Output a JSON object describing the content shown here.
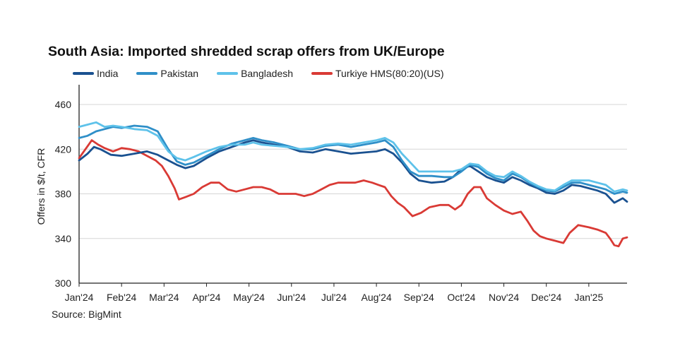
{
  "chart_data": {
    "type": "line",
    "title": "South Asia: Imported shredded scrap offers from UK/Europe",
    "ylabel": "Offers in $/t, CFR",
    "xlabel": "",
    "source": "Source: BigMint",
    "ylim": [
      300,
      460
    ],
    "yticks": [
      300,
      340,
      380,
      420,
      460
    ],
    "xlim": [
      0,
      12.9
    ],
    "xticks": [
      {
        "label": "Jan'24",
        "value": 0
      },
      {
        "label": "Feb'24",
        "value": 1
      },
      {
        "label": "Mar'24",
        "value": 2
      },
      {
        "label": "Apr'24",
        "value": 3
      },
      {
        "label": "May'24",
        "value": 4
      },
      {
        "label": "Jun'24",
        "value": 5
      },
      {
        "label": "Jul'24",
        "value": 6
      },
      {
        "label": "Aug'24",
        "value": 7
      },
      {
        "label": "Sep'24",
        "value": 8
      },
      {
        "label": "Oct'24",
        "value": 9
      },
      {
        "label": "Nov'24",
        "value": 10
      },
      {
        "label": "Dec'24",
        "value": 11
      },
      {
        "label": "Jan'25",
        "value": 12
      }
    ],
    "grid": "horizontal",
    "legend_position": "top-left",
    "series": [
      {
        "name": "India",
        "color": "#1a5190",
        "x": [
          0,
          0.2,
          0.35,
          0.5,
          0.75,
          1.0,
          1.3,
          1.6,
          1.85,
          2.1,
          2.3,
          2.5,
          2.7,
          3.0,
          3.3,
          3.6,
          3.9,
          4.1,
          4.3,
          4.6,
          4.9,
          5.2,
          5.5,
          5.8,
          6.1,
          6.4,
          6.7,
          7.0,
          7.2,
          7.4,
          7.6,
          7.8,
          8.0,
          8.3,
          8.6,
          8.8,
          9.0,
          9.2,
          9.4,
          9.6,
          9.8,
          10.0,
          10.2,
          10.4,
          10.6,
          10.8,
          11.0,
          11.2,
          11.4,
          11.6,
          11.8,
          12.0,
          12.2,
          12.4,
          12.6,
          12.8,
          12.9
        ],
        "values": [
          410,
          416,
          422,
          420,
          415,
          414,
          416,
          418,
          415,
          410,
          406,
          403,
          405,
          412,
          418,
          422,
          426,
          428,
          426,
          424,
          422,
          418,
          417,
          420,
          418,
          416,
          417,
          418,
          420,
          416,
          408,
          398,
          392,
          390,
          391,
          395,
          402,
          405,
          400,
          395,
          392,
          390,
          395,
          392,
          388,
          385,
          381,
          380,
          383,
          388,
          387,
          385,
          383,
          380,
          372,
          376,
          373
        ]
      },
      {
        "name": "Pakistan",
        "color": "#2f8fc8",
        "x": [
          0,
          0.2,
          0.4,
          0.6,
          0.8,
          1.0,
          1.3,
          1.6,
          1.85,
          2.1,
          2.3,
          2.5,
          2.7,
          3.0,
          3.3,
          3.6,
          3.9,
          4.1,
          4.3,
          4.6,
          4.9,
          5.2,
          5.5,
          5.8,
          6.1,
          6.4,
          6.7,
          7.0,
          7.2,
          7.4,
          7.6,
          7.8,
          8.0,
          8.3,
          8.6,
          8.8,
          9.0,
          9.2,
          9.4,
          9.6,
          9.8,
          10.0,
          10.2,
          10.4,
          10.6,
          10.8,
          11.0,
          11.2,
          11.4,
          11.6,
          11.8,
          12.0,
          12.2,
          12.4,
          12.6,
          12.8,
          12.9
        ],
        "values": [
          430,
          432,
          436,
          438,
          440,
          439,
          441,
          440,
          436,
          420,
          409,
          406,
          408,
          414,
          420,
          425,
          428,
          430,
          428,
          426,
          423,
          420,
          420,
          423,
          424,
          422,
          424,
          426,
          428,
          422,
          410,
          400,
          396,
          396,
          395,
          395,
          400,
          406,
          404,
          398,
          394,
          392,
          398,
          395,
          390,
          386,
          383,
          382,
          386,
          390,
          390,
          388,
          386,
          384,
          380,
          382,
          381
        ]
      },
      {
        "name": "Bangladesh",
        "color": "#5ec2ea",
        "x": [
          0,
          0.2,
          0.4,
          0.6,
          0.8,
          1.0,
          1.3,
          1.6,
          1.85,
          2.1,
          2.3,
          2.5,
          2.7,
          3.0,
          3.3,
          3.6,
          3.9,
          4.1,
          4.3,
          4.6,
          4.9,
          5.2,
          5.5,
          5.8,
          6.1,
          6.4,
          6.7,
          7.0,
          7.2,
          7.4,
          7.6,
          7.8,
          8.0,
          8.3,
          8.6,
          8.8,
          9.0,
          9.2,
          9.4,
          9.6,
          9.8,
          10.0,
          10.2,
          10.4,
          10.6,
          10.8,
          11.0,
          11.2,
          11.4,
          11.6,
          11.8,
          12.0,
          12.2,
          12.4,
          12.6,
          12.8,
          12.9
        ],
        "values": [
          440,
          442,
          444,
          440,
          441,
          440,
          438,
          437,
          432,
          418,
          412,
          410,
          413,
          418,
          422,
          424,
          424,
          426,
          424,
          423,
          422,
          420,
          421,
          424,
          425,
          424,
          426,
          428,
          430,
          426,
          416,
          408,
          400,
          400,
          400,
          400,
          402,
          407,
          406,
          400,
          396,
          395,
          400,
          396,
          391,
          387,
          384,
          383,
          388,
          392,
          392,
          392,
          390,
          388,
          382,
          384,
          383
        ]
      },
      {
        "name": "Turkiye HMS(80:20)(US)",
        "color": "#d93a35",
        "x": [
          0,
          0.15,
          0.3,
          0.45,
          0.6,
          0.8,
          1.0,
          1.2,
          1.4,
          1.6,
          1.8,
          1.95,
          2.1,
          2.25,
          2.35,
          2.5,
          2.7,
          2.9,
          3.1,
          3.3,
          3.5,
          3.7,
          3.9,
          4.1,
          4.3,
          4.5,
          4.7,
          4.9,
          5.1,
          5.3,
          5.5,
          5.7,
          5.9,
          6.1,
          6.3,
          6.5,
          6.7,
          6.9,
          7.05,
          7.2,
          7.35,
          7.5,
          7.65,
          7.85,
          8.05,
          8.25,
          8.5,
          8.7,
          8.85,
          9.0,
          9.15,
          9.3,
          9.45,
          9.6,
          9.8,
          10.0,
          10.2,
          10.4,
          10.55,
          10.7,
          10.85,
          11.0,
          11.2,
          11.4,
          11.55,
          11.75,
          12.0,
          12.2,
          12.4,
          12.5,
          12.6,
          12.7,
          12.8,
          12.9
        ],
        "values": [
          412,
          420,
          428,
          424,
          421,
          418,
          421,
          420,
          418,
          414,
          410,
          405,
          396,
          385,
          375,
          377,
          380,
          386,
          390,
          390,
          384,
          382,
          384,
          386,
          386,
          384,
          380,
          380,
          380,
          378,
          380,
          384,
          388,
          390,
          390,
          390,
          392,
          390,
          388,
          386,
          378,
          372,
          368,
          360,
          363,
          368,
          370,
          370,
          366,
          370,
          380,
          386,
          386,
          376,
          370,
          365,
          362,
          364,
          356,
          347,
          342,
          340,
          338,
          336,
          345,
          352,
          350,
          348,
          345,
          340,
          334,
          333,
          340,
          341
        ]
      }
    ]
  }
}
